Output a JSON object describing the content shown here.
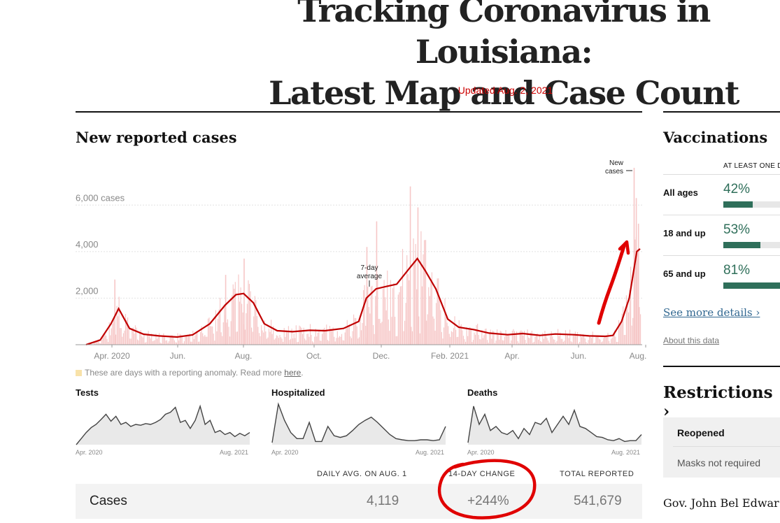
{
  "header": {
    "headline_line1": "Tracking Coronavirus in Louisiana:",
    "headline_line2": "Latest Map and Case Count",
    "updated": "Updated Aug. 2, 2021"
  },
  "cases_chart": {
    "title": "New reported cases",
    "annotation_new_cases_1": "New",
    "annotation_new_cases_2": "cases",
    "annotation_avg_1": "7-day",
    "annotation_avg_2": "average",
    "anomaly_note": "These are days with a reporting anomaly. Read more",
    "anomaly_link": "here",
    "anomaly_end": ".",
    "bar_color": "#f6c7c7",
    "line_color": "#c00000"
  },
  "chart_data": [
    {
      "type": "area",
      "title": "New reported cases",
      "x_tick_labels": [
        "Apr. 2020",
        "Jun.",
        "Aug.",
        "Oct.",
        "Dec.",
        "Feb. 2021",
        "Apr.",
        "Jun.",
        "Aug."
      ],
      "y_tick_labels": [
        "2,000",
        "4,000",
        "6,000 cases"
      ],
      "y_ticks": [
        2000,
        4000,
        6000
      ],
      "ylim": [
        0,
        7600
      ],
      "grid": true,
      "x_start": "2020-03-09",
      "x_end": "2021-08-01",
      "series": [
        {
          "name": "7-day average",
          "x": [
            "2020-03-09",
            "2020-03-22",
            "2020-04-01",
            "2020-04-08",
            "2020-04-18",
            "2020-05-01",
            "2020-05-15",
            "2020-06-01",
            "2020-06-15",
            "2020-07-01",
            "2020-07-15",
            "2020-07-25",
            "2020-08-01",
            "2020-08-10",
            "2020-08-20",
            "2020-09-01",
            "2020-09-15",
            "2020-10-01",
            "2020-10-15",
            "2020-11-01",
            "2020-11-15",
            "2020-11-22",
            "2020-12-01",
            "2020-12-10",
            "2020-12-20",
            "2021-01-01",
            "2021-01-08",
            "2021-01-15",
            "2021-01-25",
            "2021-02-05",
            "2021-02-15",
            "2021-03-01",
            "2021-03-15",
            "2021-04-01",
            "2021-04-15",
            "2021-05-01",
            "2021-05-15",
            "2021-06-01",
            "2021-06-15",
            "2021-06-30",
            "2021-07-07",
            "2021-07-15",
            "2021-07-22",
            "2021-07-29",
            "2021-08-01"
          ],
          "y": [
            0,
            200,
            900,
            1550,
            700,
            450,
            380,
            330,
            420,
            900,
            1700,
            2150,
            2200,
            1800,
            900,
            600,
            560,
            620,
            600,
            700,
            1000,
            2000,
            2400,
            2500,
            2600,
            3300,
            3700,
            3200,
            2400,
            1100,
            750,
            650,
            500,
            430,
            480,
            400,
            460,
            430,
            380,
            360,
            400,
            1000,
            2000,
            4000,
            4119
          ]
        },
        {
          "name": "New cases",
          "x": [
            "2020-04-04",
            "2020-07-15",
            "2020-08-01",
            "2020-11-22",
            "2020-12-01",
            "2021-01-01",
            "2021-01-08",
            "2021-01-15",
            "2021-07-26",
            "2021-07-28",
            "2021-07-30"
          ],
          "y": [
            2800,
            3000,
            3700,
            4200,
            5300,
            6800,
            5900,
            4500,
            7600,
            6300,
            5200
          ]
        }
      ]
    },
    {
      "type": "area",
      "title": "Tests",
      "x_tick_labels": [
        "Apr. 2020",
        "Aug. 2021"
      ],
      "y": [
        0,
        0.15,
        0.3,
        0.42,
        0.5,
        0.62,
        0.75,
        0.58,
        0.7,
        0.5,
        0.55,
        0.45,
        0.5,
        0.48,
        0.52,
        0.5,
        0.55,
        0.62,
        0.75,
        0.8,
        0.92,
        0.55,
        0.6,
        0.4,
        0.6,
        0.95,
        0.5,
        0.6,
        0.3,
        0.35,
        0.25,
        0.3,
        0.2,
        0.28,
        0.22,
        0.3
      ]
    },
    {
      "type": "area",
      "title": "Hospitalized",
      "x_tick_labels": [
        "Apr. 2020",
        "Aug. 2021"
      ],
      "y": [
        0.05,
        1.0,
        0.6,
        0.3,
        0.15,
        0.15,
        0.55,
        0.08,
        0.08,
        0.45,
        0.22,
        0.18,
        0.22,
        0.35,
        0.5,
        0.6,
        0.68,
        0.55,
        0.4,
        0.25,
        0.15,
        0.12,
        0.1,
        0.1,
        0.12,
        0.12,
        0.1,
        0.12,
        0.45
      ]
    },
    {
      "type": "area",
      "title": "Deaths",
      "x_tick_labels": [
        "Apr. 2020",
        "Aug. 2021"
      ],
      "y": [
        0.05,
        0.95,
        0.5,
        0.75,
        0.35,
        0.45,
        0.3,
        0.25,
        0.35,
        0.15,
        0.4,
        0.25,
        0.55,
        0.5,
        0.65,
        0.3,
        0.5,
        0.7,
        0.5,
        0.85,
        0.45,
        0.4,
        0.3,
        0.2,
        0.18,
        0.12,
        0.1,
        0.15,
        0.08,
        0.1,
        0.1,
        0.25
      ]
    }
  ],
  "small_charts": {
    "tests": "Tests",
    "hospitalized": "Hospitalized",
    "deaths": "Deaths",
    "axis_start": "Apr. 2020",
    "axis_end": "Aug. 2021"
  },
  "summary_table": {
    "col_daily": "DAILY AVG. ON AUG. 1",
    "col_change": "14-DAY CHANGE",
    "col_total": "TOTAL REPORTED",
    "row_label": "Cases",
    "daily": "4,119",
    "change": "+244%",
    "total": "541,679"
  },
  "vaccinations": {
    "title": "Vaccinations",
    "col_head": "AT LEAST ONE DO",
    "rows": [
      {
        "label": "All ages",
        "pct": "42%",
        "value": 42
      },
      {
        "label": "18 and up",
        "pct": "53%",
        "value": 53
      },
      {
        "label": "65 and up",
        "pct": "81%",
        "value": 81
      }
    ],
    "more": "See more details ›",
    "about": "About this data",
    "color": "#2f6f5a"
  },
  "restrictions": {
    "title": "Restrictions ›",
    "status": "Reopened",
    "masks": "Masks not required",
    "governor": "Gov. John Bel Edwar"
  }
}
